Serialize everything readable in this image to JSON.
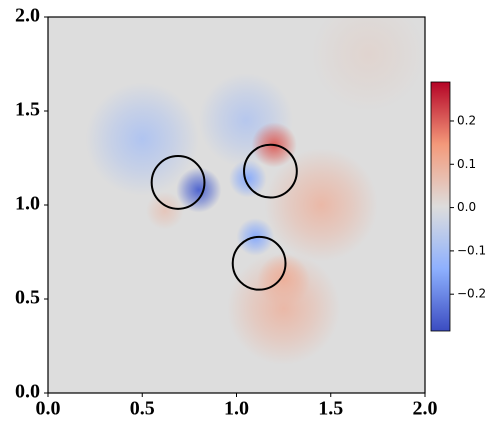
{
  "chart_data": {
    "type": "field",
    "xlim": [
      0,
      2
    ],
    "ylim": [
      0,
      2
    ],
    "xticks": [
      {
        "value": 0,
        "label": "0.0"
      },
      {
        "value": 0.5,
        "label": "0.5"
      },
      {
        "value": 1,
        "label": "1.0"
      },
      {
        "value": 1.5,
        "label": "1.5"
      },
      {
        "value": 2,
        "label": "2.0"
      }
    ],
    "yticks": [
      {
        "value": 0,
        "label": "0.0"
      },
      {
        "value": 0.5,
        "label": "0.5"
      },
      {
        "value": 1,
        "label": "1.0"
      },
      {
        "value": 1.5,
        "label": "1.5"
      },
      {
        "value": 2,
        "label": "2.0"
      }
    ],
    "colormap": "coolwarm",
    "clim": [
      -0.285,
      0.29
    ],
    "cticks": [
      {
        "value": -0.2,
        "label": "−0.2"
      },
      {
        "value": -0.1,
        "label": "−0.1"
      },
      {
        "value": 0,
        "label": "0.0"
      },
      0.1,
      0.2
    ],
    "hotspots": [
      {
        "x": 0.5,
        "y": 1.35,
        "value": -0.08,
        "r": 0.3
      },
      {
        "x": 0.8,
        "y": 1.08,
        "value": -0.25,
        "r": 0.12
      },
      {
        "x": 0.62,
        "y": 0.97,
        "value": 0.05,
        "r": 0.1
      },
      {
        "x": 1.05,
        "y": 1.45,
        "value": -0.07,
        "r": 0.25
      },
      {
        "x": 1.2,
        "y": 1.32,
        "value": 0.2,
        "r": 0.12
      },
      {
        "x": 1.06,
        "y": 1.14,
        "value": -0.15,
        "r": 0.1
      },
      {
        "x": 1.45,
        "y": 1.0,
        "value": 0.08,
        "r": 0.3
      },
      {
        "x": 1.1,
        "y": 0.83,
        "value": -0.15,
        "r": 0.1
      },
      {
        "x": 1.25,
        "y": 0.6,
        "value": 0.12,
        "r": 0.14
      },
      {
        "x": 1.25,
        "y": 0.45,
        "value": 0.08,
        "r": 0.3
      },
      {
        "x": 1.7,
        "y": 1.8,
        "value": 0.02,
        "r": 0.3
      }
    ],
    "circles": [
      {
        "x": 0.69,
        "y": 1.12,
        "r": 0.14
      },
      {
        "x": 1.18,
        "y": 1.18,
        "r": 0.14
      },
      {
        "x": 1.12,
        "y": 0.69,
        "r": 0.14
      }
    ]
  }
}
